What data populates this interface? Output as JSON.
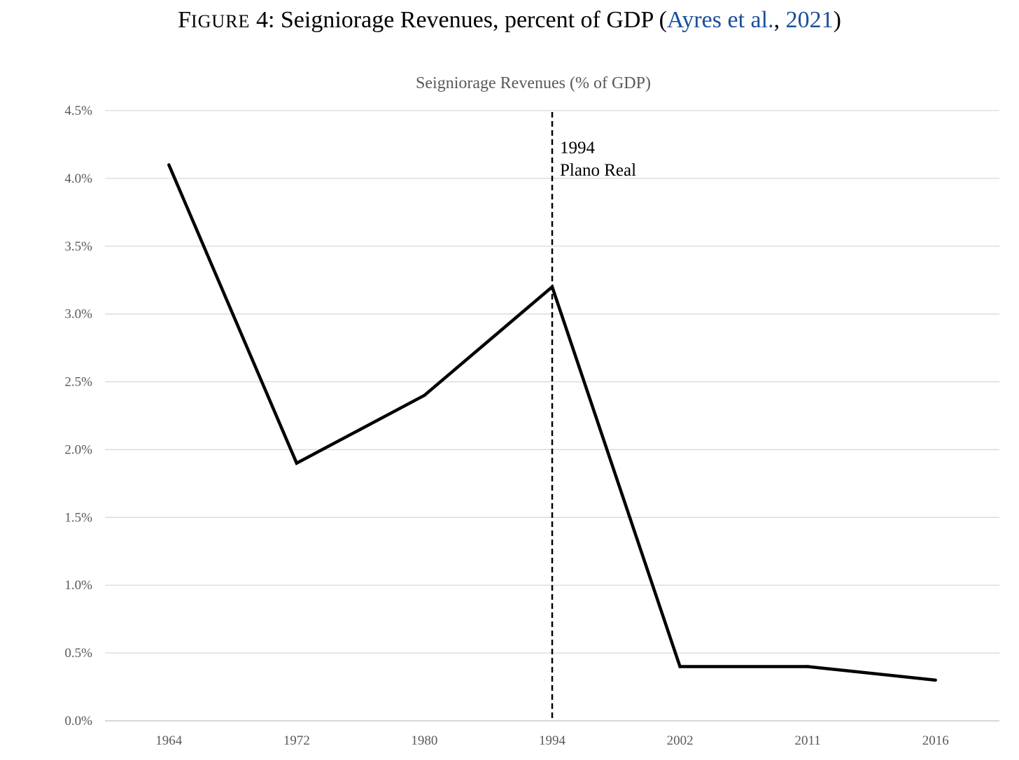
{
  "caption": {
    "prefix_first": "F",
    "prefix_rest": "IGURE",
    "number": "4:",
    "text": "Seigniorage Revenues, percent of GDP",
    "open_paren": "(",
    "cite_author": "Ayres et al.",
    "comma": ",",
    "cite_year": "2021",
    "close_paren": ")",
    "cite_color": "#1a4f9c"
  },
  "chart_data": {
    "type": "line",
    "title": "Seigniorage Revenues (% of GDP)",
    "categories": [
      "1964",
      "1972",
      "1980",
      "1994",
      "2002",
      "2011",
      "2016"
    ],
    "series": [
      {
        "name": "Seigniorage Revenues (% of GDP)",
        "values": [
          4.1,
          1.9,
          2.4,
          3.2,
          0.4,
          0.4,
          0.3
        ],
        "color": "#000000"
      }
    ],
    "ylim": [
      0,
      4.5
    ],
    "yticks": [
      0,
      0.5,
      1.0,
      1.5,
      2.0,
      2.5,
      3.0,
      3.5,
      4.0,
      4.5
    ],
    "ytick_labels": [
      "0.0%",
      "0.5%",
      "1.0%",
      "1.5%",
      "2.0%",
      "2.5%",
      "3.0%",
      "3.5%",
      "4.0%",
      "4.5%"
    ],
    "xlabel": "",
    "ylabel": "",
    "grid": true,
    "legend": "none",
    "annotation": {
      "category": "1994",
      "style": "dashed vertical line",
      "lines": [
        "1994",
        "Plano Real"
      ]
    }
  }
}
